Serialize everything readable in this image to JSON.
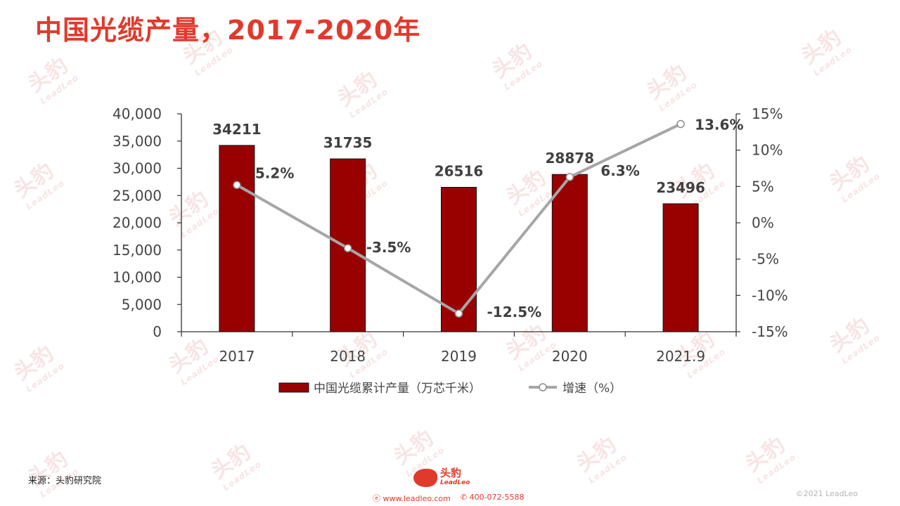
{
  "title": "中国光缆产量，2017-2020年",
  "source": "来源：头豹研究院",
  "footer": {
    "logo_text": "头豹",
    "logo_sub": "LeadLeo",
    "website": "www.leadleo.com",
    "phone": "400-072-5588",
    "copyright": "©2021 LeadLeo"
  },
  "watermark": {
    "text": "头豹",
    "sub": "LeadLeo"
  },
  "colors": {
    "title": "#e03a2c",
    "bar": "#990000",
    "line": "#a6a6a6",
    "accent": "#e03a2c"
  },
  "chart_data": {
    "type": "bar",
    "categories": [
      "2017",
      "2018",
      "2019",
      "2020",
      "2021.9"
    ],
    "series": [
      {
        "name": "中国光缆累计产量（万芯千米）",
        "type": "bar",
        "axis": "left",
        "values": [
          34211,
          31735,
          26516,
          28878,
          23496
        ],
        "color": "#990000"
      },
      {
        "name": "增速（%）",
        "type": "line",
        "axis": "right",
        "values": [
          5.2,
          -3.5,
          -12.5,
          6.3,
          13.6
        ],
        "color": "#a6a6a6"
      }
    ],
    "bar_labels": [
      "34211",
      "31735",
      "26516",
      "28878",
      "23496"
    ],
    "line_labels": [
      "5.2%",
      "-3.5%",
      "-12.5%",
      "6.3%",
      "13.6%"
    ],
    "y_left": {
      "range": [
        0,
        40000
      ],
      "ticks": [
        "0",
        "5,000",
        "10,000",
        "15,000",
        "20,000",
        "25,000",
        "30,000",
        "35,000",
        "40,000"
      ],
      "tick_values": [
        0,
        5000,
        10000,
        15000,
        20000,
        25000,
        30000,
        35000,
        40000
      ]
    },
    "y_right": {
      "range": [
        -15,
        15
      ],
      "ticks": [
        "-15%",
        "-10%",
        "-5%",
        "0%",
        "5%",
        "10%",
        "15%"
      ],
      "tick_values": [
        -15,
        -10,
        -5,
        0,
        5,
        10,
        15
      ]
    },
    "legend_position": "bottom",
    "grid": false
  }
}
